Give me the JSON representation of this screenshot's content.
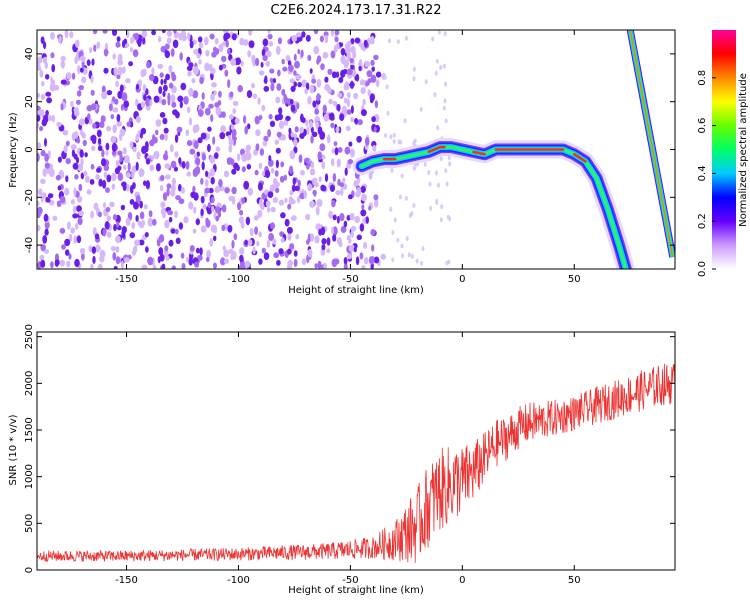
{
  "title": "C2E6.2024.173.17.31.R22",
  "chart_data": [
    {
      "type": "heatmap",
      "title": "C2E6.2024.173.17.31.R22",
      "xlabel": "Height of straight line (km)",
      "ylabel": "Frequency (Hz)",
      "xlim": [
        -190,
        95
      ],
      "ylim": [
        -50,
        50
      ],
      "xticks": [
        -150,
        -100,
        -50,
        0,
        50
      ],
      "yticks": [
        -40,
        -20,
        0,
        20,
        40
      ],
      "colorbar": {
        "label": "Normalized spectral amplitude",
        "range": [
          0,
          1
        ],
        "ticks": [
          0.0,
          0.2,
          0.4,
          0.6,
          0.8
        ],
        "colors": [
          "#ffffff",
          "#cc99ff",
          "#6600ff",
          "#0000ff",
          "#00ccff",
          "#00ff66",
          "#66ff00",
          "#ffff00",
          "#ff8800",
          "#ff0000",
          "#ff0099"
        ]
      },
      "noise_region": {
        "x": [
          -190,
          -35
        ],
        "level": 0.4
      },
      "ridge": {
        "x": [
          -45,
          -40,
          -35,
          -30,
          -25,
          -20,
          -15,
          -10,
          -5,
          0,
          5,
          10,
          15,
          20,
          30,
          40,
          45,
          50,
          55,
          60,
          65,
          70,
          73
        ],
        "y": [
          -7,
          -5,
          -4,
          -4,
          -3,
          -2,
          -1,
          1,
          1,
          0,
          -1,
          -2,
          0,
          0,
          0,
          0,
          0,
          -2,
          -5,
          -12,
          -25,
          -40,
          -50
        ]
      },
      "steep_line": {
        "x": [
          75,
          94
        ],
        "y": [
          50,
          -45
        ]
      }
    },
    {
      "type": "line",
      "xlabel": "Height of straight line (km)",
      "ylabel": "SNR (10 * v/v)",
      "xlim": [
        -190,
        95
      ],
      "ylim": [
        0,
        2550
      ],
      "xticks": [
        -150,
        -100,
        -50,
        0,
        50
      ],
      "yticks": [
        0,
        500,
        1000,
        1500,
        2000,
        2500
      ],
      "color": "#ee3333",
      "x": [
        -190,
        -150,
        -100,
        -60,
        -40,
        -30,
        -20,
        -15,
        -10,
        -5,
        0,
        5,
        10,
        15,
        20,
        25,
        30,
        40,
        50,
        60,
        70,
        80,
        90,
        95
      ],
      "y": [
        150,
        150,
        170,
        200,
        240,
        320,
        480,
        700,
        850,
        920,
        960,
        1050,
        1200,
        1350,
        1420,
        1520,
        1580,
        1620,
        1680,
        1760,
        1840,
        1920,
        1990,
        2000
      ],
      "noise_amplitude": [
        60,
        60,
        70,
        90,
        120,
        220,
        420,
        450,
        450,
        420,
        380,
        330,
        280,
        260,
        240,
        230,
        220,
        200,
        190,
        200,
        210,
        220,
        230,
        230
      ]
    }
  ]
}
